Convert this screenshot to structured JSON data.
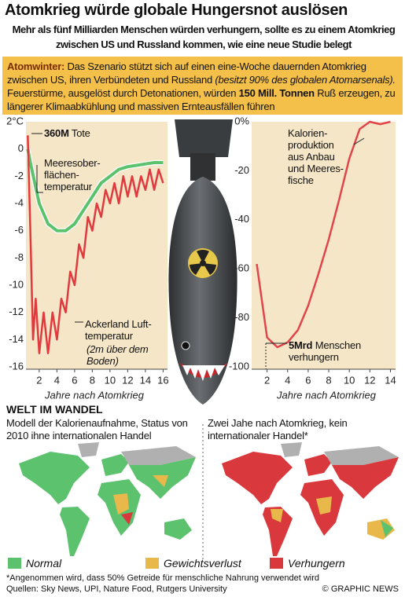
{
  "title": "Atomkrieg würde globale Hungersnot auslösen",
  "subtitle": "Mehr als fünf Milliarden Menschen würden verhungern, sollte es zu einem Atomkrieg zwischen US und Russland kommen, wie eine neue Studie belegt",
  "intro": [
    {
      "text": "Atomwinter:",
      "style": "bold"
    },
    {
      "text": "Das Szenario stützt sich auf einen eine-Woche dauernden Atomkrieg zwischen US, ihren Verbündeten und Russland",
      "style": "normal"
    },
    {
      "text": "(besitzt 90% des globalen Atom­arsenals).",
      "style": "italic"
    },
    {
      "text": "Feuerstürme, ausgelöst durch Detonationen, würden",
      "style": "normal"
    },
    {
      "text": "150 Mill. Tonnen",
      "style": "bold"
    },
    {
      "text": "Ruß erzeugen, zu längerer Klimaabkühlung und massiven Ernteausfällen führen",
      "style": "normal"
    }
  ],
  "chart_data": [
    {
      "type": "line",
      "xlabel": "Jahre nach Atomkrieg",
      "xlim": [
        0.5,
        16.5
      ],
      "ylim": [
        -16,
        2
      ],
      "xticks": [
        2,
        4,
        6,
        8,
        10,
        12,
        14,
        16
      ],
      "yticks": [
        {
          "value": 2,
          "label": "2°C"
        },
        0,
        -2,
        -4,
        -6,
        -8,
        -10,
        -12,
        -14,
        -16
      ],
      "series": [
        {
          "name": "Meeresober­flächen­temperatur",
          "color": "#5cc26e",
          "x": [
            0.7,
            1,
            2,
            3,
            4,
            5,
            6,
            7,
            8,
            9,
            10,
            11,
            12,
            13,
            14,
            15,
            16
          ],
          "values": [
            0,
            -1,
            -4,
            -5.5,
            -6,
            -6,
            -5.5,
            -4.5,
            -3.5,
            -2.5,
            -2,
            -1.5,
            -1.3,
            -1.2,
            -1.1,
            -1,
            -1
          ]
        },
        {
          "name": "Ackerland Luft­temperatur",
          "color": "#e03a3e",
          "x": [
            0.7,
            1,
            1.3,
            1.6,
            2,
            2.5,
            3,
            3.5,
            4,
            4.5,
            5,
            5.5,
            6,
            6.5,
            7,
            7.5,
            8,
            8.5,
            9,
            9.5,
            10,
            10.5,
            11,
            11.5,
            12,
            12.5,
            13,
            13.5,
            14,
            14.5,
            15,
            15.5,
            16
          ],
          "values": [
            1,
            -6,
            -14,
            -11,
            -15,
            -12,
            -15,
            -12,
            -14,
            -11,
            -12,
            -9,
            -10,
            -7,
            -8,
            -5,
            -6,
            -4,
            -5,
            -3,
            -4,
            -2.5,
            -4,
            -2,
            -3.5,
            -2,
            -3.5,
            -2,
            -3,
            -1.5,
            -3,
            -1.5,
            -2.5
          ]
        }
      ],
      "annotations": [
        "360M",
        "Tote",
        "(2m über dem Boden)"
      ]
    },
    {
      "type": "line",
      "xlabel": "Jahre nach Atomkrieg",
      "xlim": [
        0.5,
        14.5
      ],
      "ylim": [
        -100,
        0
      ],
      "xticks": [
        2,
        4,
        6,
        8,
        10,
        12,
        14
      ],
      "yticks": [
        {
          "value": 0,
          "label": "0%"
        },
        -20,
        -40,
        -60,
        -80,
        -100
      ],
      "series": [
        {
          "name": "Kalorien­produktion aus Anbau und Meeres­fische",
          "color": "#e0454a",
          "x": [
            1,
            2,
            3,
            4,
            5,
            6,
            7,
            8,
            9,
            10,
            11,
            12,
            13,
            14
          ],
          "values": [
            -58,
            -88,
            -92,
            -90,
            -85,
            -75,
            -62,
            -48,
            -32,
            -15,
            -3,
            0,
            -1,
            0
          ]
        }
      ],
      "annotations": [
        "5Mrd",
        "Menschen verhungern"
      ]
    }
  ],
  "maps": {
    "heading": "WELT IM WANDEL",
    "panels": [
      {
        "caption": "Modell der Kalorienaufnahme, Status von 2010 ihne internationalen Handel"
      },
      {
        "caption": "Zwei Jahe nach Atomkrieg, kein internationaler Handel*"
      }
    ],
    "legend": [
      {
        "label": "Normal",
        "color": "#5cc26e"
      },
      {
        "label": "Gewichtsverlust",
        "color": "#e8b84a"
      },
      {
        "label": "Verhungern",
        "color": "#d9383c"
      }
    ]
  },
  "footnote": "*Angenommen wird, dass 50% Getreide für menschliche Nahrung verwendet wird",
  "sources": "Quellen: Sky News, UPI, Nature Food, Rutgers University",
  "credit": "© GRAPHIC NEWS"
}
